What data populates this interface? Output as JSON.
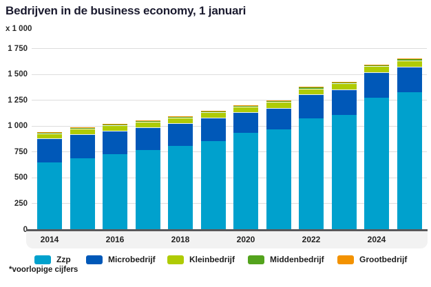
{
  "title": "Bedrijven in de business economy, 1 januari",
  "unit_label": "x 1 000",
  "footnote": "*voorlopige cijfers",
  "colors": {
    "zzp": "#00a1cd",
    "microbedrijf": "#0058b8",
    "kleinbedrijf": "#afcb05",
    "middenbedrijf": "#53a31d",
    "grootbedrijf": "#f39200",
    "gridline": "#dcdcdc",
    "baseline": "#58585a",
    "xband": "#f2f2f2",
    "text": "#1d1d1d"
  },
  "chart_data": {
    "type": "bar",
    "stacked": true,
    "title": "Bedrijven in de business economy, 1 januari",
    "ylabel": "x 1 000",
    "xlabel": "",
    "ylim": [
      0,
      1750
    ],
    "yticks": [
      0,
      250,
      500,
      750,
      1000,
      1250,
      1500,
      1750
    ],
    "grid": true,
    "legend_position": "bottom",
    "categories": [
      2014,
      2015,
      2016,
      2017,
      2018,
      2019,
      2020,
      2021,
      2022,
      2023,
      2024,
      2025
    ],
    "x_tick_labels": [
      "2014",
      "2016",
      "2018",
      "2020",
      "2022",
      "2024"
    ],
    "series": [
      {
        "name": "Zzp",
        "color": "#00a1cd",
        "values": [
          650,
          690,
          730,
          770,
          815,
          860,
          935,
          970,
          1075,
          1110,
          1280,
          1330
        ]
      },
      {
        "name": "Microbedrijf",
        "color": "#0058b8",
        "values": [
          232,
          238,
          229,
          223,
          215,
          224,
          202,
          211,
          235,
          249,
          244,
          249
        ]
      },
      {
        "name": "Kleinbedrijf",
        "color": "#afcb05",
        "values": [
          48,
          50,
          52,
          52,
          53,
          54,
          55,
          56,
          56,
          57,
          57,
          58
        ]
      },
      {
        "name": "Middenbedrijf",
        "color": "#53a31d",
        "values": [
          10,
          11,
          11,
          11,
          11,
          12,
          12,
          13,
          13,
          14,
          14,
          15
        ]
      },
      {
        "name": "Grootbedrijf",
        "color": "#f39200",
        "values": [
          2,
          2,
          2,
          2,
          2,
          2,
          2,
          2,
          3,
          3,
          3,
          3
        ]
      }
    ],
    "totals": [
      942,
      991,
      1024,
      1058,
      1096,
      1152,
      1206,
      1252,
      1382,
      1433,
      1598,
      1655
    ]
  }
}
